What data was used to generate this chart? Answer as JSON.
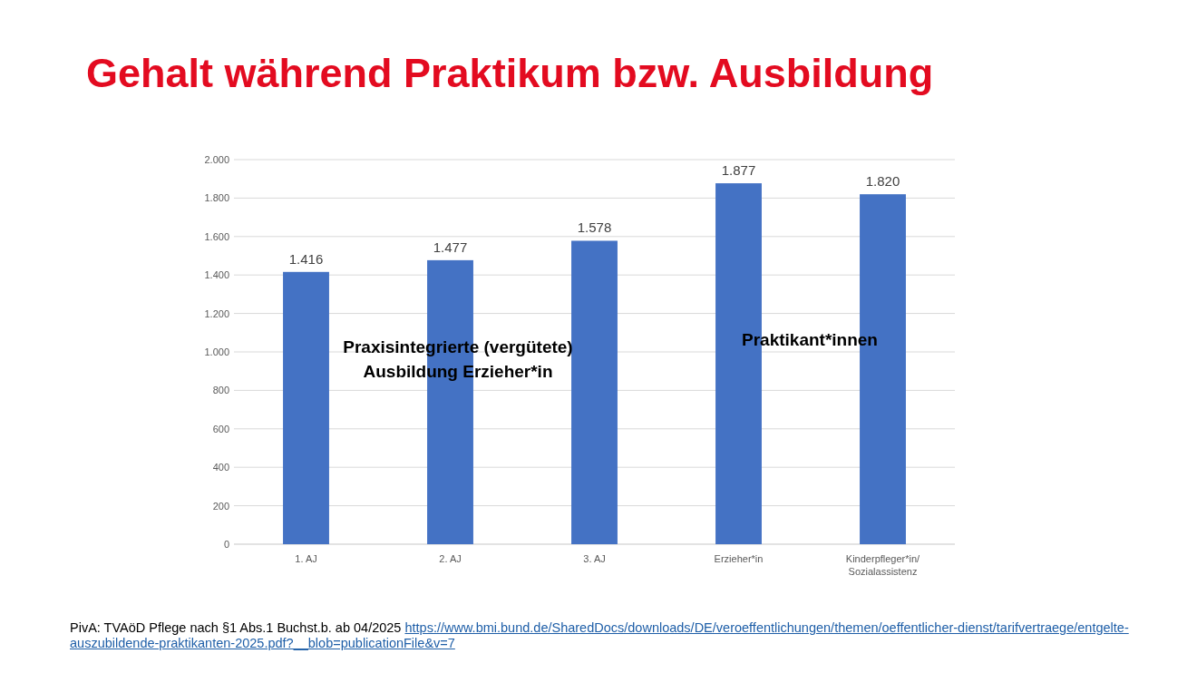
{
  "chart_data": {
    "type": "bar",
    "title": "Gehalt während Praktikum bzw. Ausbildung",
    "categories": [
      "1. AJ",
      "2. AJ",
      "3. AJ",
      "Erzieher*in",
      "Kinderpfleger*in/\nSozialassistenz"
    ],
    "values": [
      1416,
      1477,
      1578,
      1877,
      1820
    ],
    "value_labels": [
      "1.416",
      "1.477",
      "1.578",
      "1.877",
      "1.820"
    ],
    "color": "#4472c4",
    "ylim": [
      0,
      2000
    ],
    "yticks": [
      0,
      200,
      400,
      600,
      800,
      {
        "value": 1000,
        "label": "1.000"
      },
      {
        "value": 1200,
        "label": "1.200"
      },
      {
        "value": 1400,
        "label": "1.400"
      },
      {
        "value": 1600,
        "label": "1.600"
      },
      {
        "value": 1800,
        "label": "1.800"
      },
      {
        "value": 2000,
        "label": "2.000"
      }
    ],
    "grid": "y",
    "annotations": [
      "Praxisintegrierte (vergütete)\nAusbildung Erzieher*in",
      "Praktikant*innen",
      "PivA: TVAöD Pflege nach §1 Abs.1 Buchst.b. ab 04/2025",
      "https://www.bmi.bund.de/SharedDocs/downloads/DE/veroeffentlichungen/themen/oeffentlicher-dienst/tarifvertraege/entgelte-auszubildende-praktikanten-2025.pdf?__blob=publicationFile&v=7"
    ]
  }
}
